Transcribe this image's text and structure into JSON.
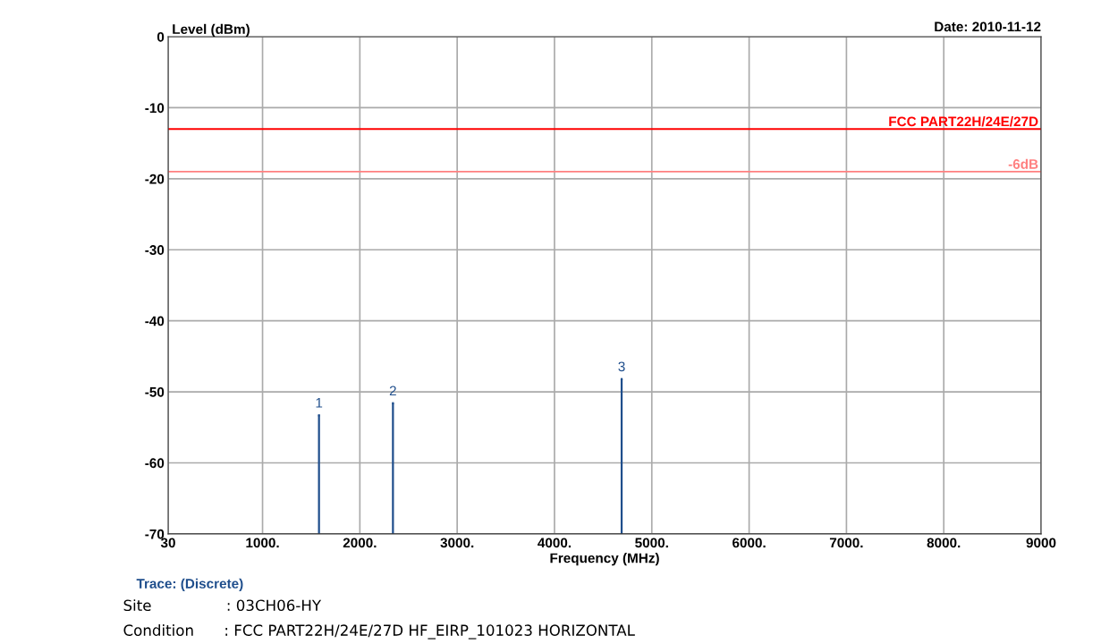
{
  "chart_data": {
    "type": "lollipop",
    "ylabel": "Level (dBm)",
    "xlabel": "Frequency (MHz)",
    "x": [
      1580,
      2340,
      4690
    ],
    "series": [
      {
        "color": "#1f4e8c",
        "values": [
          -53.3,
          -51.6,
          -48.2
        ]
      }
    ],
    "xlim": [
      30,
      9000
    ],
    "xticks": [
      30,
      {
        "value": 1000,
        "label": "1000."
      },
      {
        "value": 2000,
        "label": "2000."
      },
      {
        "value": 3000,
        "label": "3000."
      },
      {
        "value": 4000,
        "label": "4000."
      },
      {
        "value": 5000,
        "label": "5000."
      },
      {
        "value": 6000,
        "label": "6000."
      },
      {
        "value": 7000,
        "label": "7000."
      },
      {
        "value": 8000,
        "label": "8000."
      },
      9000
    ],
    "ylim": [
      -70,
      0
    ],
    "yticks": [
      -70,
      -60,
      -50,
      -40,
      -30,
      -20,
      -10,
      0
    ],
    "grid": true,
    "ref_lines": [
      {
        "axis": "y",
        "value": -13,
        "label": "FCC PART22H/24E/27D",
        "color": "#ff0000"
      },
      {
        "axis": "y",
        "value": -19,
        "label": "-6dB",
        "color": "#ff8080"
      }
    ],
    "annotations": [
      {
        "text": "1",
        "x": 1580,
        "y": -53.3
      },
      {
        "text": "2",
        "x": 2340,
        "y": -51.6
      },
      {
        "text": "3",
        "x": 4690,
        "y": -48.2
      },
      "Date: 2010-11-12",
      "Trace: (Discrete)",
      "Site     : 03CH06-HY",
      "Condition  : FCC PART22H/24E/27D HF_EIRP_101023 HORIZONTAL"
    ]
  }
}
